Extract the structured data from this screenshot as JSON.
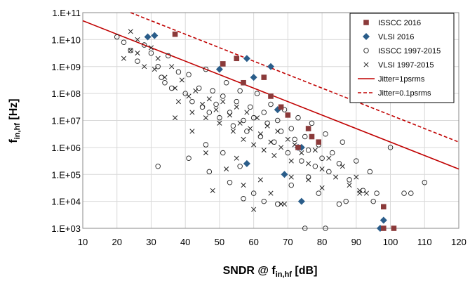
{
  "chart_data": {
    "type": "scatter",
    "title": "",
    "xlabel": {
      "main": "SNDR @ f",
      "sub": "in,hf",
      "unit": " [dB]"
    },
    "ylabel": {
      "main": "f",
      "sub": "in,hf",
      "unit": " [Hz]"
    },
    "xlim": [
      10,
      120
    ],
    "ylim_log10": [
      3,
      11
    ],
    "x_ticks": [
      10,
      20,
      30,
      40,
      50,
      60,
      70,
      80,
      90,
      100,
      110,
      120
    ],
    "x_tick_labels": [
      "10",
      "20",
      "30",
      "40",
      "50",
      "60",
      "70",
      "80",
      "90",
      "100",
      "110",
      "120"
    ],
    "y_ticks_log10": [
      3,
      4,
      5,
      6,
      7,
      8,
      9,
      10,
      11
    ],
    "y_tick_labels": [
      "1.E+03",
      "1.E+04",
      "1.E+05",
      "1.E+06",
      "1.E+07",
      "1.E+08",
      "1.E+09",
      "1.E+10",
      "1.E+11"
    ],
    "grid": {
      "x": true,
      "y": true
    },
    "legend_position": "top-right",
    "colors": {
      "isscc2016": "#8B3A3A",
      "vlsi2016": "#2A5D8A",
      "hist": "#222222",
      "jitter": "#C00000"
    },
    "legend": [
      {
        "label": "ISSCC 2016",
        "marker": "square"
      },
      {
        "label": "VLSI 2016",
        "marker": "diamond"
      },
      {
        "label": "ISSCC 1997-2015",
        "marker": "circle"
      },
      {
        "label": "VLSI 1997-2015",
        "marker": "x"
      },
      {
        "label": "Jitter=1psrms",
        "marker": "solid-line"
      },
      {
        "label": "Jitter=0.1psrms",
        "marker": "dashed-line"
      }
    ],
    "series": [
      {
        "name": "ISSCC 2016",
        "marker": "square",
        "points": [
          [
            37,
            10.2
          ],
          [
            51,
            9.1
          ],
          [
            55,
            9.3
          ],
          [
            57,
            8.4
          ],
          [
            63,
            8.6
          ],
          [
            65,
            7.9
          ],
          [
            68,
            7.5
          ],
          [
            70,
            7.2
          ],
          [
            73,
            6.0
          ],
          [
            76,
            6.7
          ],
          [
            77,
            6.4
          ],
          [
            79,
            6.2
          ],
          [
            98,
            3.8
          ],
          [
            98,
            3.0
          ],
          [
            101,
            3.0
          ]
        ]
      },
      {
        "name": "VLSI 2016",
        "marker": "diamond",
        "points": [
          [
            29,
            10.1
          ],
          [
            31,
            10.15
          ],
          [
            50,
            8.9
          ],
          [
            58,
            9.3
          ],
          [
            60,
            8.6
          ],
          [
            65,
            9.0
          ],
          [
            67,
            7.4
          ],
          [
            69,
            5.0
          ],
          [
            73,
            6.0
          ],
          [
            74,
            4.0
          ],
          [
            74,
            6.0
          ],
          [
            58,
            5.4
          ],
          [
            97,
            3.0
          ],
          [
            98,
            3.3
          ]
        ]
      },
      {
        "name": "ISSCC 1997-2015",
        "marker": "circle",
        "points": [
          [
            20,
            10.1
          ],
          [
            22,
            9.9
          ],
          [
            24,
            9.6
          ],
          [
            26,
            9.2
          ],
          [
            28,
            9.8
          ],
          [
            30,
            9.5
          ],
          [
            32,
            9.0
          ],
          [
            33,
            8.6
          ],
          [
            34,
            8.4
          ],
          [
            35,
            9.4
          ],
          [
            36,
            8.2
          ],
          [
            38,
            8.8
          ],
          [
            40,
            8.0
          ],
          [
            41,
            8.7
          ],
          [
            42,
            7.7
          ],
          [
            44,
            8.2
          ],
          [
            45,
            7.5
          ],
          [
            46,
            8.9
          ],
          [
            47,
            7.3
          ],
          [
            48,
            8.1
          ],
          [
            49,
            7.6
          ],
          [
            50,
            7.1
          ],
          [
            51,
            7.9
          ],
          [
            52,
            8.4
          ],
          [
            53,
            7.3
          ],
          [
            54,
            6.8
          ],
          [
            55,
            7.7
          ],
          [
            56,
            8.1
          ],
          [
            57,
            7.0
          ],
          [
            58,
            6.6
          ],
          [
            59,
            7.5
          ],
          [
            60,
            7.1
          ],
          [
            61,
            8.0
          ],
          [
            62,
            6.4
          ],
          [
            63,
            7.3
          ],
          [
            64,
            6.9
          ],
          [
            65,
            7.6
          ],
          [
            66,
            6.2
          ],
          [
            67,
            7.0
          ],
          [
            68,
            6.6
          ],
          [
            69,
            7.4
          ],
          [
            70,
            5.8
          ],
          [
            71,
            6.7
          ],
          [
            72,
            6.3
          ],
          [
            73,
            7.1
          ],
          [
            74,
            5.5
          ],
          [
            75,
            6.4
          ],
          [
            76,
            5.9
          ],
          [
            77,
            6.9
          ],
          [
            78,
            5.3
          ],
          [
            79,
            6.1
          ],
          [
            80,
            5.6
          ],
          [
            81,
            6.5
          ],
          [
            82,
            5.1
          ],
          [
            83,
            5.8
          ],
          [
            85,
            5.4
          ],
          [
            86,
            6.2
          ],
          [
            88,
            4.8
          ],
          [
            90,
            5.5
          ],
          [
            92,
            4.4
          ],
          [
            94,
            5.1
          ],
          [
            95,
            4.0
          ],
          [
            100,
            6.0
          ],
          [
            104,
            4.3
          ],
          [
            106,
            4.3
          ],
          [
            110,
            4.7
          ],
          [
            32,
            5.3
          ],
          [
            41,
            5.6
          ],
          [
            46,
            6.1
          ],
          [
            47,
            5.1
          ],
          [
            51,
            5.8
          ],
          [
            53,
            4.7
          ],
          [
            56,
            5.3
          ],
          [
            57,
            4.1
          ],
          [
            60,
            4.3
          ],
          [
            63,
            4.0
          ],
          [
            67,
            3.9
          ],
          [
            71,
            4.6
          ],
          [
            76,
            4.9
          ],
          [
            79,
            4.3
          ],
          [
            85,
            3.9
          ],
          [
            87,
            4.0
          ],
          [
            96,
            4.3
          ],
          [
            81,
            3.0
          ],
          [
            75,
            3.0
          ]
        ]
      },
      {
        "name": "VLSI 1997-2015",
        "marker": "x",
        "points": [
          [
            22,
            9.3
          ],
          [
            24,
            9.6
          ],
          [
            26,
            9.5
          ],
          [
            28,
            9.0
          ],
          [
            30,
            9.7
          ],
          [
            31,
            8.9
          ],
          [
            32,
            9.3
          ],
          [
            34,
            8.6
          ],
          [
            36,
            9.0
          ],
          [
            37,
            8.2
          ],
          [
            38,
            7.7
          ],
          [
            39,
            8.5
          ],
          [
            41,
            7.9
          ],
          [
            42,
            7.3
          ],
          [
            43,
            8.1
          ],
          [
            45,
            7.6
          ],
          [
            46,
            7.1
          ],
          [
            47,
            7.8
          ],
          [
            49,
            7.4
          ],
          [
            50,
            6.9
          ],
          [
            51,
            7.7
          ],
          [
            53,
            7.2
          ],
          [
            54,
            6.6
          ],
          [
            55,
            7.5
          ],
          [
            56,
            6.9
          ],
          [
            57,
            6.3
          ],
          [
            58,
            7.3
          ],
          [
            59,
            6.7
          ],
          [
            60,
            6.1
          ],
          [
            61,
            7.1
          ],
          [
            62,
            6.5
          ],
          [
            63,
            5.9
          ],
          [
            64,
            6.8
          ],
          [
            65,
            6.2
          ],
          [
            66,
            5.7
          ],
          [
            67,
            6.6
          ],
          [
            68,
            6.0
          ],
          [
            70,
            6.3
          ],
          [
            71,
            5.5
          ],
          [
            72,
            6.1
          ],
          [
            74,
            5.8
          ],
          [
            76,
            5.4
          ],
          [
            78,
            5.9
          ],
          [
            80,
            5.2
          ],
          [
            82,
            5.6
          ],
          [
            84,
            4.9
          ],
          [
            86,
            5.3
          ],
          [
            88,
            4.6
          ],
          [
            90,
            4.9
          ],
          [
            37,
            7.1
          ],
          [
            42,
            6.6
          ],
          [
            46,
            5.8
          ],
          [
            48,
            4.4
          ],
          [
            52,
            5.2
          ],
          [
            55,
            5.6
          ],
          [
            57,
            4.6
          ],
          [
            60,
            3.7
          ],
          [
            62,
            4.8
          ],
          [
            65,
            4.3
          ],
          [
            68,
            3.9
          ],
          [
            69,
            3.9
          ],
          [
            71,
            4.9
          ],
          [
            76,
            4.8
          ],
          [
            80,
            4.5
          ],
          [
            91,
            4.4
          ],
          [
            24,
            10.3
          ],
          [
            26,
            10.0
          ],
          [
            93,
            4.3
          ],
          [
            91,
            4.3
          ]
        ]
      }
    ],
    "lines": [
      {
        "name": "Jitter=1psrms",
        "style": "solid",
        "points": [
          [
            10,
            10.7
          ],
          [
            120,
            5.2
          ]
        ]
      },
      {
        "name": "Jitter=0.1psrms",
        "style": "dashed",
        "points": [
          [
            24,
            11.0
          ],
          [
            120,
            6.2
          ]
        ]
      }
    ]
  }
}
